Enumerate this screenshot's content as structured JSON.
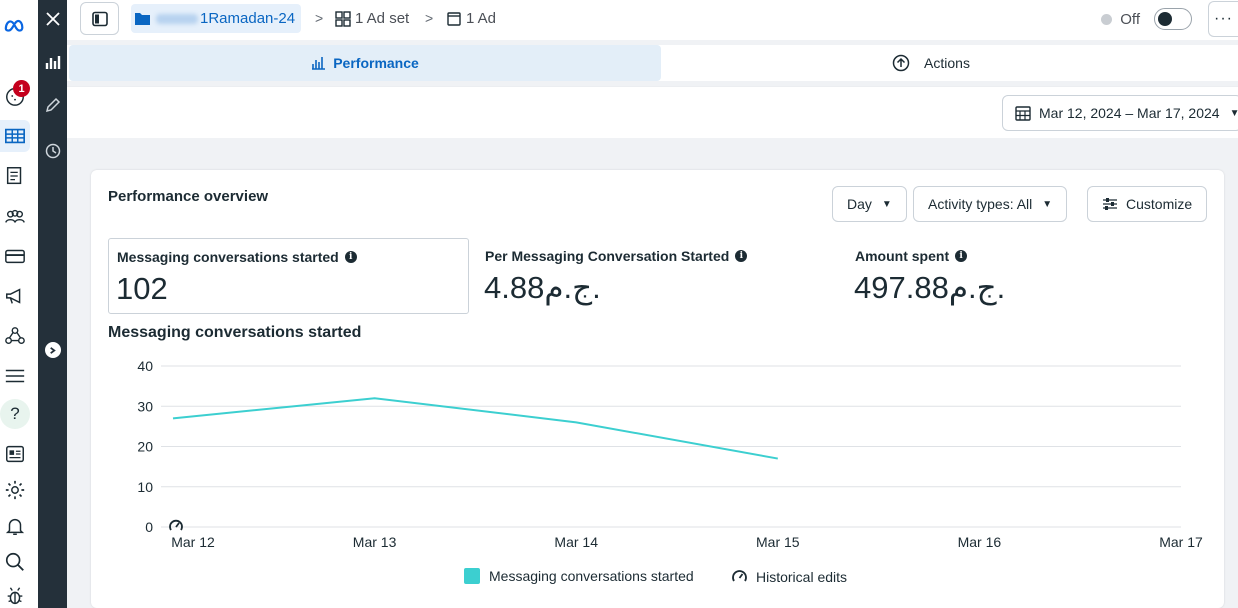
{
  "breadcrumb": {
    "campaign": "1Ramadan-24",
    "ad_set": "1 Ad set",
    "ad": "1 Ad"
  },
  "status": {
    "label": "Off"
  },
  "notifications": {
    "count": "1"
  },
  "tabs": [
    {
      "label": "Performance",
      "active": true
    },
    {
      "label": "Actions",
      "active": false
    }
  ],
  "date_range": "Mar 12, 2024 – Mar 17, 2024",
  "panel": {
    "title": "Performance overview",
    "controls": {
      "granularity": "Day",
      "activity": "Activity types: All",
      "customize": "Customize"
    },
    "metrics": [
      {
        "label": "Messaging conversations started",
        "value": "102"
      },
      {
        "label": "Per Messaging Conversation Started",
        "value": "4.88ج.م."
      },
      {
        "label": "Amount spent",
        "value": "497.88ج.م."
      }
    ],
    "chart_title": "Messaging conversations started"
  },
  "chart_data": {
    "type": "line",
    "categories": [
      "Mar 12",
      "Mar 13",
      "Mar 14",
      "Mar 15",
      "Mar 16",
      "Mar 17"
    ],
    "series": [
      {
        "name": "Messaging conversations started",
        "values": [
          27,
          32,
          26,
          17,
          null,
          null
        ]
      }
    ],
    "yticks": [
      "0",
      "10",
      "20",
      "30",
      "40"
    ],
    "ylim": [
      0,
      40
    ],
    "grid": true,
    "color": "#3ccfd0",
    "legend": [
      "Messaging conversations started",
      "Historical edits"
    ],
    "legend_position": "bottom"
  }
}
